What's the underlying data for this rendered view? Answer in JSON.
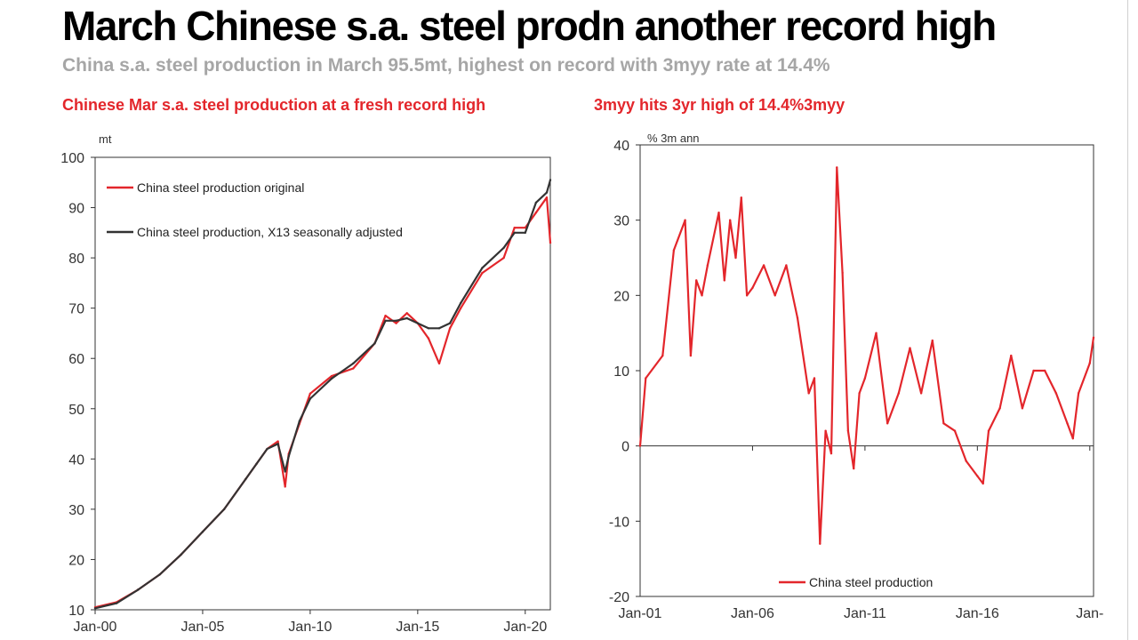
{
  "title": "March Chinese s.a. steel prodn another record high",
  "subtitle": "China s.a. steel production in March 95.5mt, highest on record with 3myy rate at 14.4%",
  "chart_data": [
    {
      "type": "line",
      "panel_title": "Chinese Mar s.a. steel production at a fresh record high",
      "unit_label": "mt",
      "ylim": [
        10,
        100
      ],
      "y_ticks": [
        10,
        20,
        30,
        40,
        50,
        60,
        70,
        80,
        90,
        100
      ],
      "x_ticks": [
        "Jan-00",
        "Jan-05",
        "Jan-10",
        "Jan-15",
        "Jan-20"
      ],
      "x_range": [
        "Jan-00",
        "Mar-21"
      ],
      "grid": false,
      "legend_position": "top-left",
      "x": [
        "Jan-00",
        "Jan-01",
        "Jan-02",
        "Jan-03",
        "Jan-04",
        "Jan-05",
        "Jan-06",
        "Jan-07",
        "Jul-07",
        "Jan-08",
        "Jul-08",
        "Nov-08",
        "Jan-09",
        "Jul-09",
        "Jan-10",
        "Jan-11",
        "Jan-12",
        "Jan-13",
        "Jul-13",
        "Jan-14",
        "Jul-14",
        "Jan-15",
        "Jul-15",
        "Jan-16",
        "Jul-16",
        "Jan-17",
        "Jan-18",
        "Jan-19",
        "Jul-19",
        "Jan-20",
        "Jul-20",
        "Jan-21",
        "Mar-21"
      ],
      "series": [
        {
          "name": "China steel production original",
          "color": "#e3262b",
          "values": [
            10.5,
            11.5,
            14,
            17,
            21,
            25.5,
            30,
            36,
            39,
            42,
            43.5,
            34.5,
            41,
            47,
            53,
            56.5,
            58,
            63,
            68.5,
            67,
            69,
            67,
            64,
            59,
            66,
            70,
            77,
            80,
            86,
            86,
            89,
            92,
            83
          ]
        },
        {
          "name": "China steel production, X13 seasonally adjusted",
          "color": "#333333",
          "values": [
            10.3,
            11.3,
            14,
            17,
            21,
            25.5,
            30,
            36,
            39,
            42,
            43,
            37.5,
            40.5,
            47.5,
            52,
            56,
            59,
            63,
            67.5,
            67.5,
            68,
            67,
            66,
            66,
            67,
            71,
            78,
            82,
            85,
            85,
            91,
            93,
            95.5
          ]
        }
      ]
    },
    {
      "type": "line",
      "panel_title": "3myy hits 3yr high of 14.4%3myy",
      "unit_label": "% 3m ann",
      "ylim": [
        -20,
        40
      ],
      "y_ticks": [
        -20,
        -10,
        0,
        10,
        20,
        30,
        40
      ],
      "x_ticks": [
        "Jan-01",
        "Jan-06",
        "Jan-11",
        "Jan-16",
        "Jan-"
      ],
      "x_range": [
        "Jan-01",
        "Mar-21"
      ],
      "grid": false,
      "legend_position": "bottom-center",
      "x": [
        "Jan-01",
        "Apr-01",
        "Jan-02",
        "Jul-02",
        "Jan-03",
        "Apr-03",
        "Jul-03",
        "Oct-03",
        "Jan-04",
        "Jul-04",
        "Oct-04",
        "Jan-05",
        "Apr-05",
        "Jul-05",
        "Oct-05",
        "Jan-06",
        "Jul-06",
        "Jan-07",
        "Jul-07",
        "Jan-08",
        "Jul-08",
        "Oct-08",
        "Jan-09",
        "Apr-09",
        "Jul-09",
        "Oct-09",
        "Jan-10",
        "Apr-10",
        "Jul-10",
        "Oct-10",
        "Jan-11",
        "Jul-11",
        "Jan-12",
        "Jul-12",
        "Jan-13",
        "Jul-13",
        "Jan-14",
        "Jul-14",
        "Jan-15",
        "Jul-15",
        "Jan-16",
        "Apr-16",
        "Jul-16",
        "Jan-17",
        "Jul-17",
        "Jan-18",
        "Jul-18",
        "Jan-19",
        "Jul-19",
        "Jan-20",
        "Apr-20",
        "Jul-20",
        "Jan-21",
        "Mar-21"
      ],
      "series": [
        {
          "name": "China steel production",
          "color": "#e3262b",
          "values": [
            0,
            9,
            12,
            26,
            30,
            12,
            22,
            20,
            24,
            31,
            22,
            30,
            25,
            33,
            20,
            21,
            24,
            20,
            24,
            17,
            7,
            9,
            -13,
            2,
            -1,
            37,
            23,
            2,
            -3,
            7,
            9,
            15,
            3,
            7,
            13,
            7,
            14,
            3,
            2,
            -2,
            -4,
            -5,
            2,
            5,
            12,
            5,
            10,
            10,
            7,
            3,
            1,
            7,
            11,
            14.4
          ]
        }
      ]
    }
  ]
}
